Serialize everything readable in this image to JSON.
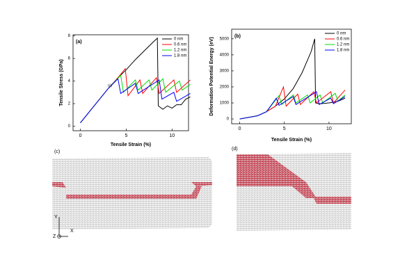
{
  "chart_data": [
    {
      "type": "line",
      "title": "(a)",
      "x_label": "Tensile Strain (%)",
      "y_label": "Tensile Stress (GPa)",
      "annotation": "(c)",
      "xlim": [
        -0.8,
        11.8
      ],
      "ylim": [
        -0.4,
        8.1
      ],
      "xticks": [
        0,
        5,
        10
      ],
      "yticks": [
        0,
        2,
        4,
        6,
        8
      ],
      "legend": "upper right",
      "series": [
        {
          "name": "0 nm",
          "color": "#000000",
          "x": [
            0,
            1,
            2,
            3,
            4,
            5,
            6,
            7,
            8,
            8.4,
            8.5,
            9,
            9.5,
            10,
            10.5,
            11,
            11.5,
            12
          ],
          "values": [
            0.3,
            1.3,
            2.3,
            3.3,
            4.2,
            5.0,
            5.9,
            6.7,
            7.5,
            7.8,
            1.8,
            1.5,
            1.8,
            1.6,
            1.9,
            1.9,
            2.4,
            2.6
          ]
        },
        {
          "name": "0.6 nm",
          "color": "#ff0000",
          "x": [
            0,
            3,
            4,
            4.9,
            5.2,
            6.5,
            6.8,
            8.3,
            8.6,
            10.2,
            10.5,
            12
          ],
          "values": [
            0.3,
            3.3,
            4.2,
            5.1,
            2.7,
            4.1,
            2.9,
            4.3,
            2.9,
            4.1,
            3.0,
            4.1
          ]
        },
        {
          "name": "1.2 nm",
          "color": "#00dd00",
          "x": [
            0,
            3,
            4.4,
            4.7,
            6,
            6.3,
            7.5,
            7.8,
            9,
            9.3,
            10.8,
            11.1,
            12
          ],
          "values": [
            0.3,
            3.3,
            4.5,
            3.0,
            4.1,
            3.2,
            4.1,
            3.2,
            4.2,
            3.0,
            4.0,
            3.2,
            3.7
          ]
        },
        {
          "name": "1.8 nm",
          "color": "#0000ff",
          "x": [
            0,
            3,
            4.1,
            4.4,
            6,
            6.3,
            8.6,
            8.9,
            10.2,
            10.5,
            12
          ],
          "values": [
            0.3,
            3.3,
            4.2,
            2.9,
            3.8,
            2.9,
            4.1,
            2.4,
            3.0,
            2.2,
            2.9
          ]
        }
      ]
    },
    {
      "type": "line",
      "title": "(b)",
      "x_label": "Tensile Strain (%)",
      "y_label": "Deformation Potential Energy (eV)",
      "xlim": [
        -0.9,
        12.5
      ],
      "ylim": [
        -300,
        5600
      ],
      "xticks": [
        0,
        5,
        10
      ],
      "yticks": [
        0,
        1000,
        2000,
        3000,
        4000,
        5000
      ],
      "legend": "upper right",
      "series": [
        {
          "name": "0 nm",
          "color": "#000000",
          "x": [
            0,
            2,
            3,
            4,
            5,
            6,
            7,
            8,
            8.4,
            8.5,
            9,
            10,
            11,
            11.8
          ],
          "values": [
            0,
            200,
            450,
            800,
            1250,
            1900,
            2900,
            4200,
            5000,
            1000,
            950,
            1000,
            1100,
            1300
          ]
        },
        {
          "name": "0.6 nm",
          "color": "#ff0000",
          "x": [
            0,
            2,
            3,
            4,
            4.9,
            5.2,
            6.5,
            6.8,
            8.3,
            8.6,
            10.2,
            10.5,
            11.8
          ],
          "values": [
            0,
            200,
            450,
            800,
            2000,
            800,
            1550,
            900,
            1700,
            1000,
            1700,
            1000,
            1800
          ]
        },
        {
          "name": "1.2 nm",
          "color": "#00dd00",
          "x": [
            0,
            2,
            3,
            4.4,
            4.7,
            6,
            6.3,
            7.6,
            7.9,
            9,
            9.3,
            10.7,
            11,
            11.8
          ],
          "values": [
            0,
            200,
            450,
            1450,
            900,
            1500,
            1000,
            1500,
            1000,
            1500,
            1000,
            1600,
            1100,
            1500
          ]
        },
        {
          "name": "1.8 nm",
          "color": "#0000ff",
          "x": [
            0,
            2,
            3,
            4.1,
            4.4,
            6,
            6.3,
            8.6,
            8.9,
            10.2,
            10.5,
            11.8
          ],
          "values": [
            0,
            200,
            450,
            1300,
            850,
            1400,
            900,
            1700,
            900,
            1300,
            950,
            1400
          ]
        }
      ]
    }
  ],
  "panel_c": {
    "label": "(c)",
    "axis_y": "Y",
    "axis_x": "X",
    "axis_z": "Z"
  },
  "panel_d": {
    "label": "(d)"
  }
}
